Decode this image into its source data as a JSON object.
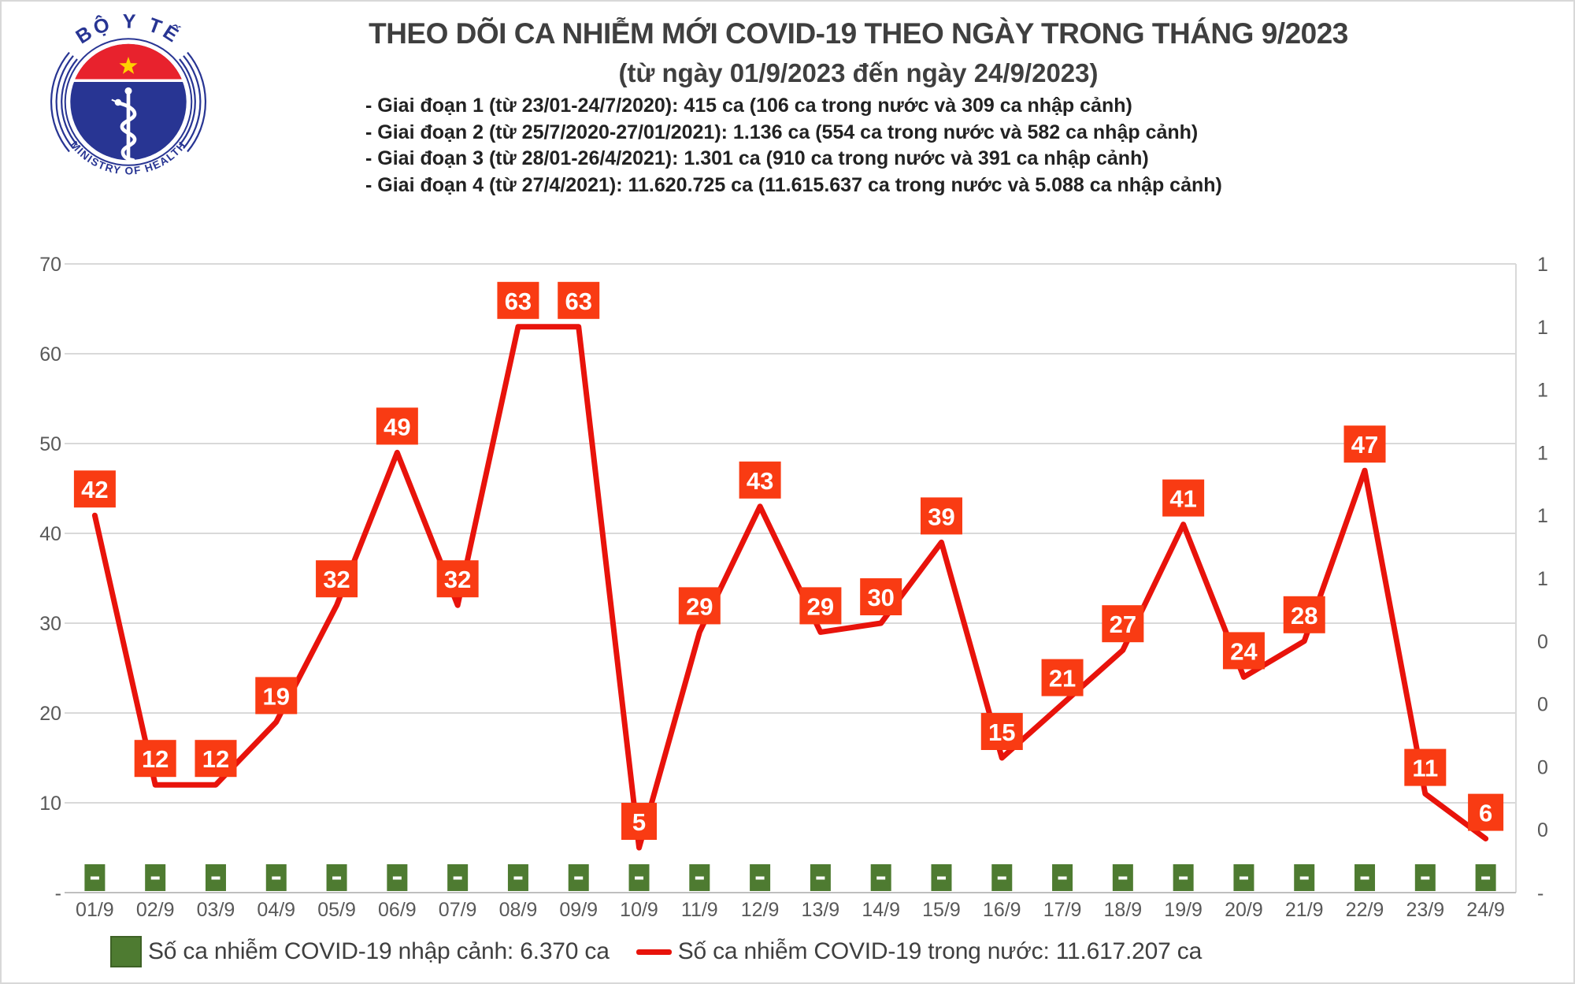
{
  "logo": {
    "top_text": "BỘ Y TẾ",
    "bottom_text": "MINISTRY OF HEALTH",
    "blue": "#283593",
    "red": "#e8222d",
    "star_color": "#ffd100"
  },
  "header": {
    "title": "THEO DÕI CA NHIỄM MỚI COVID-19 THEO NGÀY TRONG THÁNG 9/2023",
    "subtitle": "(từ ngày 01/9/2023 đến ngày 24/9/2023)",
    "notes": [
      "- Giai đoạn 1 (từ 23/01-24/7/2020): 415 ca (106 ca trong nước và 309 ca nhập cảnh)",
      "- Giai đoạn 2 (từ 25/7/2020-27/01/2021): 1.136 ca (554 ca trong nước và 582 ca nhập cảnh)",
      "- Giai đoạn 3 (từ 28/01-26/4/2021): 1.301 ca (910 ca trong nước và 391 ca nhập cảnh)",
      "- Giai đoạn 4 (từ 27/4/2021): 11.620.725 ca (11.615.637 ca trong nước và 5.088 ca nhập cảnh)"
    ]
  },
  "chart_data": {
    "type": "line",
    "categories": [
      "01/9",
      "02/9",
      "03/9",
      "04/9",
      "05/9",
      "06/9",
      "07/9",
      "08/9",
      "09/9",
      "10/9",
      "11/9",
      "12/9",
      "13/9",
      "14/9",
      "15/9",
      "16/9",
      "17/9",
      "18/9",
      "19/9",
      "20/9",
      "21/9",
      "22/9",
      "23/9",
      "24/9"
    ],
    "series": [
      {
        "name": "Số ca nhiễm COVID-19 trong nước: 11.617.207 ca",
        "type": "line",
        "color": "#e8130b",
        "label_box_color": "#f93b13",
        "values": [
          42,
          12,
          12,
          19,
          32,
          49,
          32,
          63,
          63,
          5,
          29,
          43,
          29,
          30,
          39,
          15,
          21,
          27,
          41,
          24,
          28,
          47,
          11,
          6
        ]
      },
      {
        "name": "Số ca nhiễm COVID-19 nhập cảnh: 6.370 ca",
        "type": "bar",
        "color": "#4e7b31",
        "value_labels": [
          "-",
          "-",
          "-",
          "-",
          "-",
          "-",
          "-",
          "-",
          "-",
          "-",
          "-",
          "-",
          "-",
          "-",
          "-",
          "-",
          "-",
          "-",
          "-",
          "-",
          "-",
          "-",
          "-",
          "-"
        ]
      }
    ],
    "left_axis": {
      "min": 0,
      "max": 70,
      "tick_step": 10,
      "tick_labels": [
        "70",
        "60",
        "50",
        "40",
        "30",
        "20",
        "10",
        "-"
      ]
    },
    "right_axis": {
      "min": 0,
      "max": 1,
      "tick_step": 0.1,
      "tick_labels": [
        "1",
        "1",
        "1",
        "1",
        "1",
        "1",
        "0",
        "0",
        "0",
        "0",
        "-"
      ]
    },
    "grid": "horizontal",
    "gridline_color": "#d9d9d9",
    "axis_line_color": "#bfbfbf",
    "legend_position": "bottom"
  },
  "legend": {
    "items": [
      {
        "swatch": "bar",
        "color": "#4e7b31",
        "label": "Số ca nhiễm COVID-19 nhập cảnh: 6.370 ca"
      },
      {
        "swatch": "line",
        "color": "#e8130b",
        "label": "Số ca nhiễm COVID-19 trong nước: 11.617.207 ca"
      }
    ]
  }
}
